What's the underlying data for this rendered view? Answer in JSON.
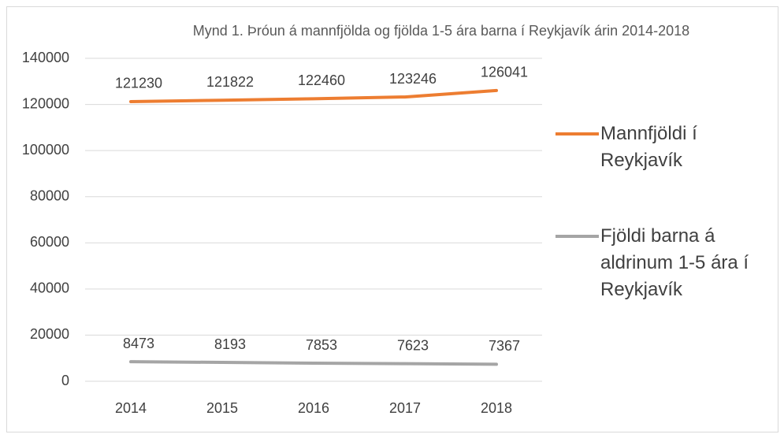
{
  "chart_data": {
    "type": "line",
    "title": "Mynd 1. Þróun á mannfjölda og fjölda 1-5 ára barna í Reykjavík árin 2014-2018",
    "categories": [
      "2014",
      "2015",
      "2016",
      "2017",
      "2018"
    ],
    "series": [
      {
        "name": "Mannfjöldi í Reykjavík",
        "color": "#ed7d31",
        "values": [
          121230,
          121822,
          122460,
          123246,
          126041
        ]
      },
      {
        "name": "Fjöldi barna á aldrinum 1-5 ára í Reykjavík",
        "color": "#a5a5a5",
        "values": [
          8473,
          8193,
          7853,
          7623,
          7367
        ]
      }
    ],
    "ylim": [
      0,
      140000
    ],
    "yticks": [
      0,
      20000,
      40000,
      60000,
      80000,
      100000,
      120000,
      140000
    ],
    "grid": true,
    "legend": "right",
    "data_labels": true
  }
}
